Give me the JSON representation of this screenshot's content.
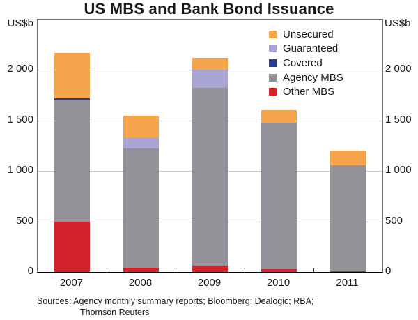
{
  "title": "US MBS and Bank Bond Issuance",
  "units": {
    "left": "US$b",
    "right": "US$b"
  },
  "source": {
    "line1": "Sources: Agency monthly summary reports; Bloomberg; Dealogic; RBA;",
    "line2": "Thomson Reuters"
  },
  "chart_data": {
    "type": "bar",
    "stacked": true,
    "title": "US MBS and Bank Bond Issuance",
    "ylabel_left": "US$b",
    "ylabel_right": "US$b",
    "categories": [
      "2007",
      "2008",
      "2009",
      "2010",
      "2011"
    ],
    "series": [
      {
        "name": "Other MBS",
        "color": "#d2232a",
        "values": [
          500,
          40,
          60,
          30,
          10
        ]
      },
      {
        "name": "Agency MBS",
        "color": "#949298",
        "values": [
          1200,
          1180,
          1760,
          1450,
          1050
        ]
      },
      {
        "name": "Covered",
        "color": "#2b3a8c",
        "values": [
          20,
          0,
          0,
          0,
          0
        ]
      },
      {
        "name": "Guaranteed",
        "color": "#a9a5d3",
        "values": [
          0,
          110,
          180,
          0,
          0
        ]
      },
      {
        "name": "Unsecured",
        "color": "#f6a44c",
        "values": [
          450,
          220,
          120,
          120,
          140
        ]
      }
    ],
    "totals": [
      2170,
      1550,
      2120,
      1600,
      1200
    ],
    "ylim": [
      0,
      2500
    ],
    "yticks": [
      0,
      500,
      1000,
      1500,
      2000
    ],
    "ytick_labels": [
      "0",
      "500",
      "1 000",
      "1 500",
      "2 000"
    ],
    "grid": true,
    "legend_position": "top-right-inside",
    "legend_order": [
      "Unsecured",
      "Guaranteed",
      "Covered",
      "Agency MBS",
      "Other MBS"
    ],
    "gridline_color": "#c9c9c9",
    "axis_color": "#000000"
  }
}
